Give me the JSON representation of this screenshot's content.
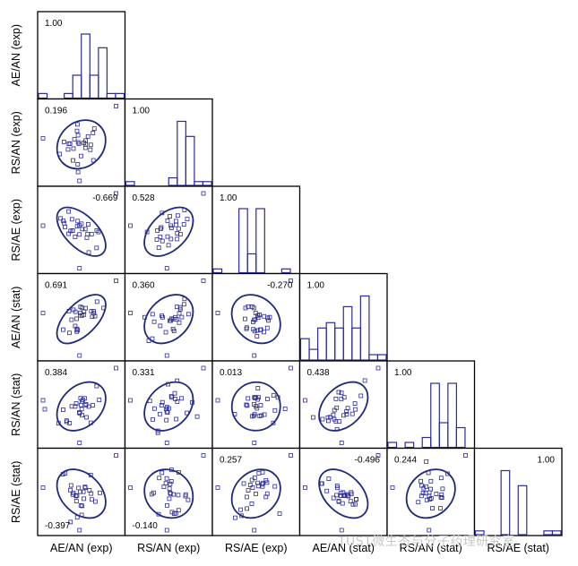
{
  "chart_data": {
    "type": "scatter",
    "layout": "scatterplot-matrix (lower triangle) with histograms on diagonal and ellipses",
    "variables": [
      "AE/AN (exp)",
      "RS/AN (exp)",
      "RS/AE (exp)",
      "AE/AN (stat)",
      "RS/AN (stat)",
      "RS/AE (stat)"
    ],
    "diagonal_labels": [
      "1.00",
      "1.00",
      "1.00",
      "1.00",
      "1.00",
      "1.00"
    ],
    "correlations": [
      {
        "row": 1,
        "col": 0,
        "value": "0.196"
      },
      {
        "row": 2,
        "col": 0,
        "value": "-0.669"
      },
      {
        "row": 2,
        "col": 1,
        "value": "0.528"
      },
      {
        "row": 3,
        "col": 0,
        "value": "0.691"
      },
      {
        "row": 3,
        "col": 1,
        "value": "0.360"
      },
      {
        "row": 3,
        "col": 2,
        "value": "-0.270"
      },
      {
        "row": 4,
        "col": 0,
        "value": "0.384"
      },
      {
        "row": 4,
        "col": 1,
        "value": "0.331"
      },
      {
        "row": 4,
        "col": 2,
        "value": "0.013"
      },
      {
        "row": 4,
        "col": 3,
        "value": "0.438"
      },
      {
        "row": 5,
        "col": 0,
        "value": "-0.397"
      },
      {
        "row": 5,
        "col": 1,
        "value": "-0.140"
      },
      {
        "row": 5,
        "col": 2,
        "value": "0.257"
      },
      {
        "row": 5,
        "col": 3,
        "value": "-0.496"
      },
      {
        "row": 5,
        "col": 4,
        "value": "0.244"
      }
    ],
    "histograms": [
      {
        "var": 0,
        "counts": [
          1,
          0,
          0,
          1,
          5,
          14,
          5,
          11,
          1,
          1
        ]
      },
      {
        "var": 1,
        "counts": [
          1,
          0,
          0,
          0,
          0,
          2,
          17,
          13,
          1,
          1
        ]
      },
      {
        "var": 2,
        "counts": [
          1,
          0,
          0,
          17,
          5,
          17,
          0,
          0,
          1,
          0
        ]
      },
      {
        "var": 3,
        "counts": [
          4,
          2,
          6,
          7,
          6,
          10,
          6,
          12,
          1,
          1
        ]
      },
      {
        "var": 4,
        "counts": [
          1,
          0,
          1,
          0,
          2,
          13,
          5,
          13,
          4,
          0
        ]
      },
      {
        "var": 5,
        "counts": [
          1,
          0,
          0,
          17,
          0,
          13,
          0,
          0,
          1,
          1
        ]
      }
    ],
    "grid": false,
    "marker": "open-square",
    "color": "#2b2b9a",
    "ellipse_color": "#1f2a7a"
  },
  "watermark": "TUST微生态与分子药理研究室"
}
